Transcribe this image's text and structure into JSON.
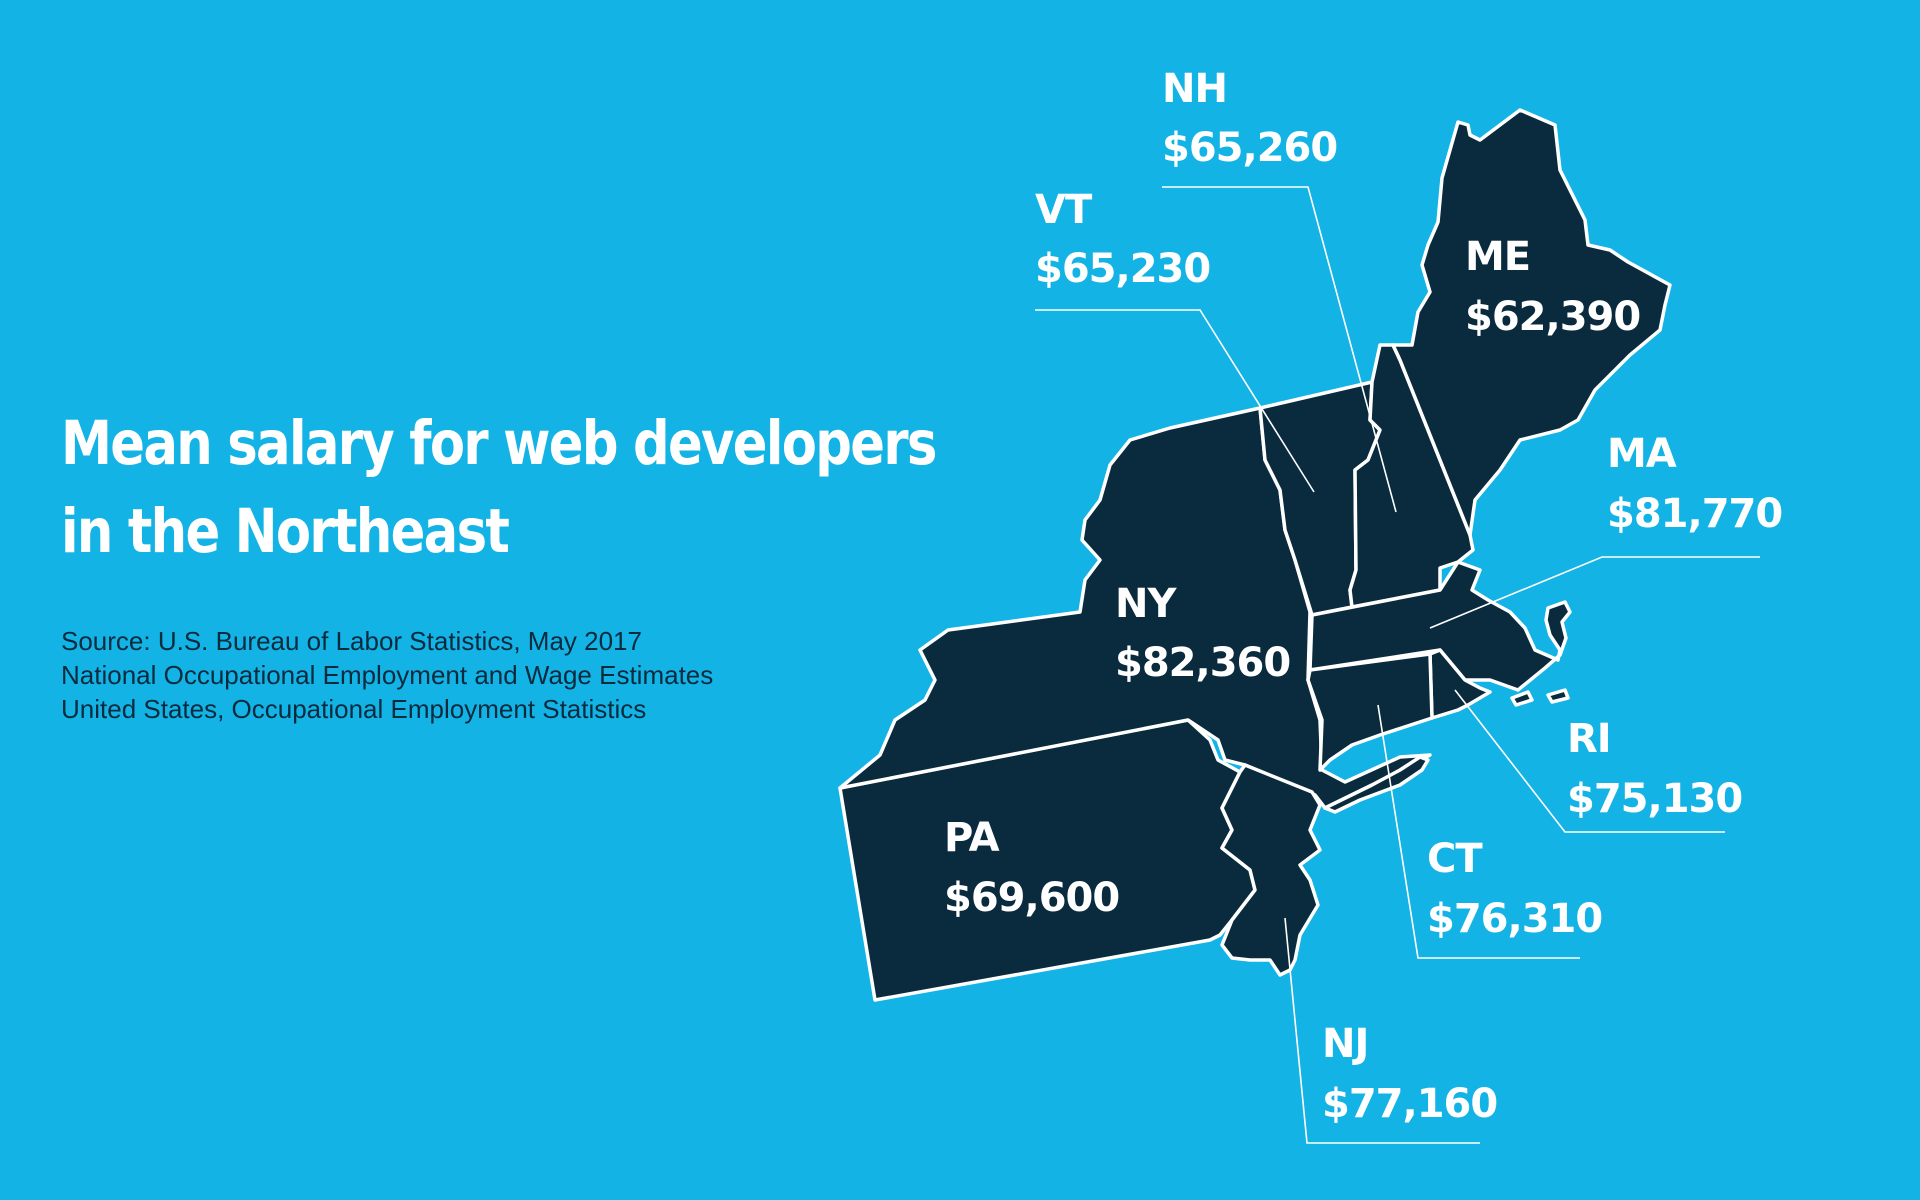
{
  "background_color": "#13b3e6",
  "title_lines": [
    "Mean salary for web developers",
    "in the Northeast"
  ],
  "source_lines": [
    "Source: U.S. Bureau of Labor Statistics, May 2017",
    "National Occupational Employment and Wage Estimates",
    "United States, Occupational Employment Statistics"
  ],
  "map": {
    "state_fill": "#0a2b3e",
    "border_color": "#ffffff",
    "label_color": "#ffffff"
  },
  "states": [
    {
      "id": "me",
      "abbr": "ME",
      "salary": "$62,390"
    },
    {
      "id": "nh",
      "abbr": "NH",
      "salary": "$65,260"
    },
    {
      "id": "vt",
      "abbr": "VT",
      "salary": "$65,230"
    },
    {
      "id": "ma",
      "abbr": "MA",
      "salary": "$81,770"
    },
    {
      "id": "ny",
      "abbr": "NY",
      "salary": "$82,360"
    },
    {
      "id": "ri",
      "abbr": "RI",
      "salary": "$75,130"
    },
    {
      "id": "ct",
      "abbr": "CT",
      "salary": "$76,310"
    },
    {
      "id": "pa",
      "abbr": "PA",
      "salary": "$69,600"
    },
    {
      "id": "nj",
      "abbr": "NJ",
      "salary": "$77,160"
    }
  ]
}
